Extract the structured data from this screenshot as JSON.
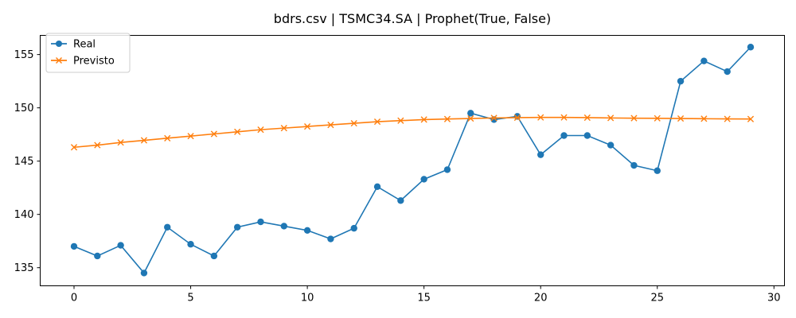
{
  "chart_data": {
    "type": "line",
    "title": "bdrs.csv | TSMC34.SA | Prophet(True, False)",
    "xlabel": "",
    "ylabel": "",
    "xlim": [
      -1.45,
      30.45
    ],
    "ylim": [
      133.3,
      156.8
    ],
    "xticks": [
      0,
      5,
      10,
      15,
      20,
      25,
      30
    ],
    "yticks": [
      135,
      140,
      145,
      150,
      155
    ],
    "grid": false,
    "legend_position": "top-left",
    "x": [
      0,
      1,
      2,
      3,
      4,
      5,
      6,
      7,
      8,
      9,
      10,
      11,
      12,
      13,
      14,
      15,
      16,
      17,
      18,
      19,
      20,
      21,
      22,
      23,
      24,
      25,
      26,
      27,
      28,
      29
    ],
    "series": [
      {
        "name": "Real",
        "color": "#1f77b4",
        "marker": "circle",
        "values": [
          137.0,
          136.1,
          137.1,
          134.5,
          138.8,
          137.2,
          136.1,
          138.8,
          139.3,
          138.9,
          138.5,
          137.7,
          138.7,
          142.6,
          141.3,
          143.3,
          144.2,
          149.5,
          148.9,
          149.2,
          145.6,
          147.4,
          147.4,
          146.5,
          144.6,
          144.1,
          152.5,
          154.4,
          153.4,
          155.7
        ]
      },
      {
        "name": "Previsto",
        "color": "#ff7f0e",
        "marker": "x",
        "values": [
          146.3,
          146.5,
          146.75,
          146.95,
          147.15,
          147.35,
          147.55,
          147.75,
          147.95,
          148.1,
          148.25,
          148.4,
          148.55,
          148.7,
          148.8,
          148.9,
          148.95,
          149.0,
          149.05,
          149.08,
          149.1,
          149.1,
          149.08,
          149.05,
          149.03,
          149.02,
          149.0,
          148.98,
          148.96,
          148.95
        ]
      }
    ]
  }
}
